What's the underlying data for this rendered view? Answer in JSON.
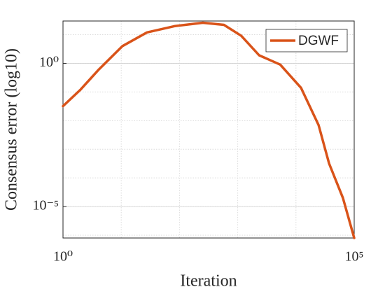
{
  "chart_data": {
    "type": "line",
    "xlabel": "Iteration",
    "ylabel": "Consensus error (log10)",
    "xscale": "log",
    "yscale": "log",
    "grid": true,
    "minor_grid": true,
    "legend": "upper right",
    "xlim": [
      1,
      100000
    ],
    "ylim": [
      8e-07,
      30
    ],
    "xticks": [
      {
        "value": 1,
        "label": "10⁰"
      },
      {
        "value": 100000,
        "label": "10⁵"
      }
    ],
    "yticks": [
      {
        "value": 1e-05,
        "label": "10⁻⁵"
      },
      {
        "value": 1,
        "label": "10⁰"
      }
    ],
    "x": [
      1,
      2,
      4,
      10.5,
      27.7,
      84,
      252,
      580,
      1150,
      2330,
      5370,
      12200,
      24500,
      37000,
      64000,
      100000
    ],
    "series": [
      {
        "name": "DGWF",
        "color": "#d95319",
        "values": [
          0.032,
          0.12,
          0.57,
          4,
          12,
          20,
          26,
          22,
          9.1,
          1.9,
          0.9,
          0.14,
          0.0069,
          0.00032,
          2e-05,
          8e-07
        ]
      }
    ]
  }
}
